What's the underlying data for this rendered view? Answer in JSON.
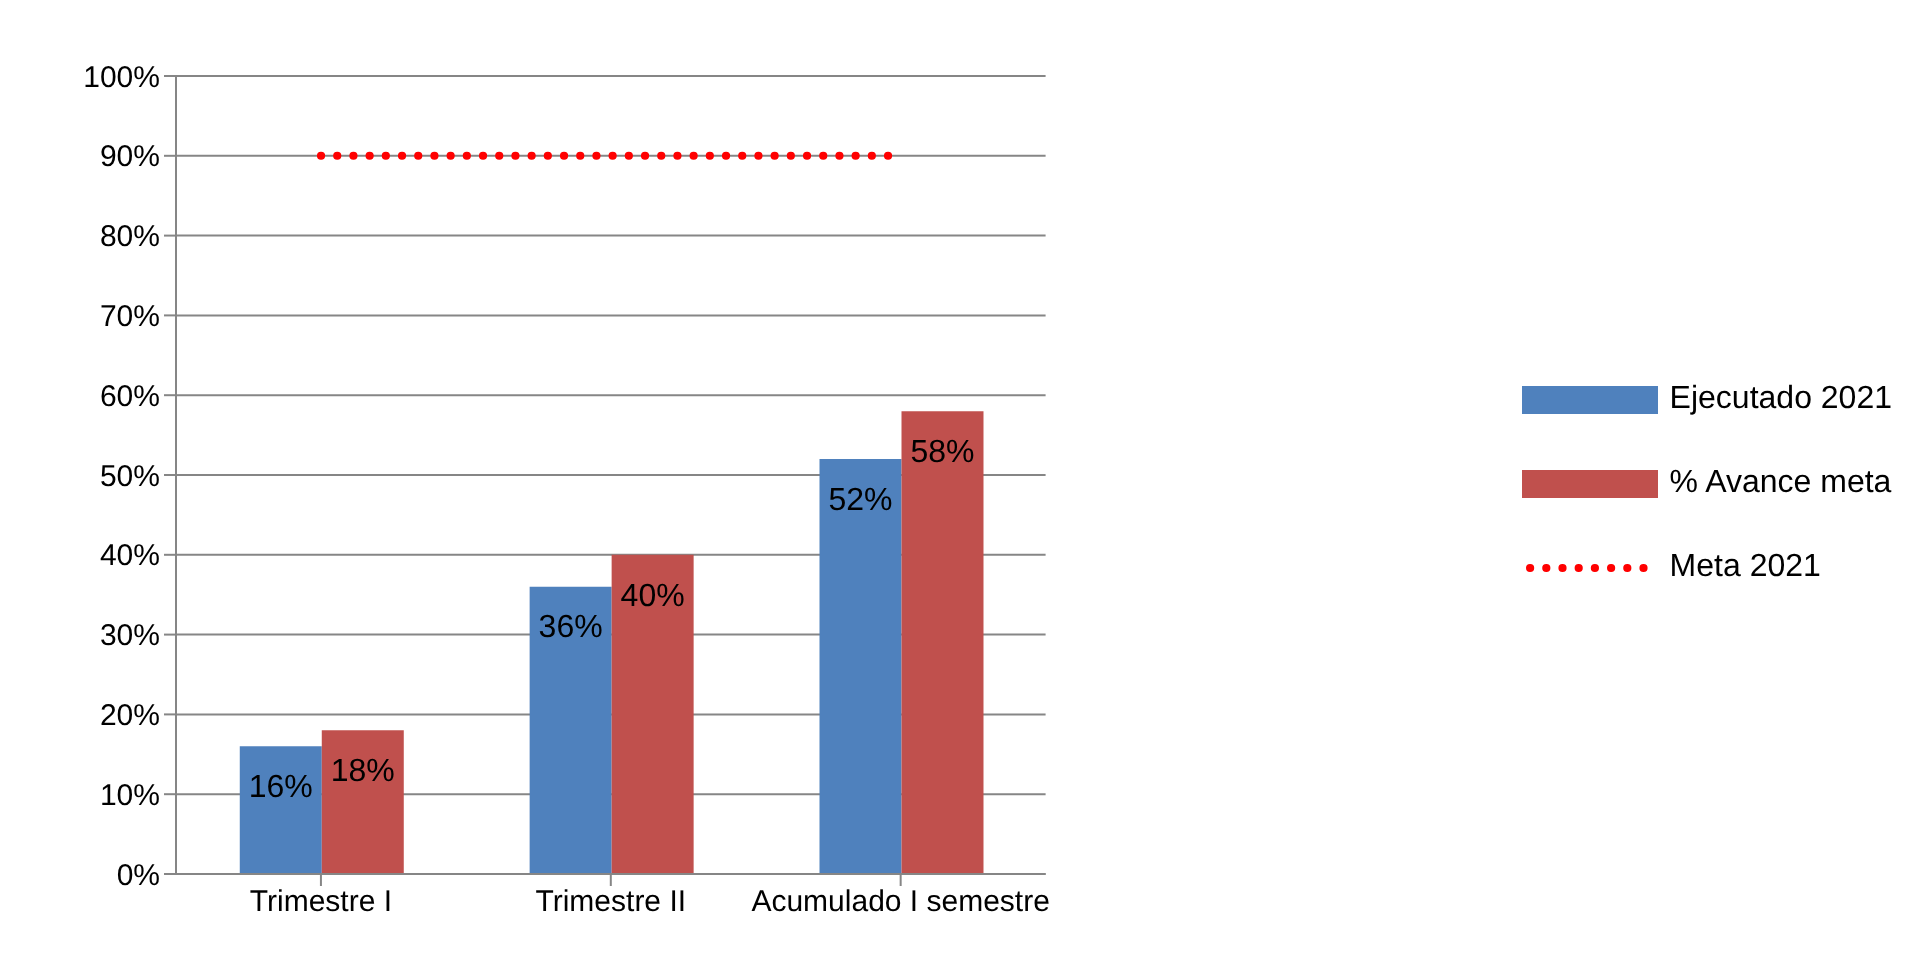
{
  "chart_data": {
    "type": "bar",
    "categories": [
      "Trimestre I",
      "Trimestre II",
      "Acumulado I semestre"
    ],
    "series": [
      {
        "name": "Ejecutado 2021",
        "color": "#4f81bd",
        "values": [
          16,
          36,
          52
        ],
        "value_labels": [
          "16%",
          "36%",
          "52%"
        ]
      },
      {
        "name": "% Avance meta",
        "color": "#c0504d",
        "values": [
          18,
          40,
          58
        ],
        "value_labels": [
          "18%",
          "40%",
          "58%"
        ]
      },
      {
        "name": "Meta 2021",
        "type": "line",
        "color": "#ff0000",
        "line_style": "dotted",
        "marker": "none",
        "values": [
          90,
          90,
          90
        ]
      }
    ],
    "ylim": [
      0,
      100
    ],
    "yticks": [
      {
        "value": 0,
        "label": "0%"
      },
      {
        "value": 10,
        "label": "10%"
      },
      {
        "value": 20,
        "label": "20%"
      },
      {
        "value": 30,
        "label": "30%"
      },
      {
        "value": 40,
        "label": "40%"
      },
      {
        "value": 50,
        "label": "50%"
      },
      {
        "value": 60,
        "label": "60%"
      },
      {
        "value": 70,
        "label": "70%"
      },
      {
        "value": 80,
        "label": "80%"
      },
      {
        "value": 90,
        "label": "90%"
      },
      {
        "value": 100,
        "label": "100%"
      }
    ],
    "grid": "y",
    "legend": "right"
  }
}
